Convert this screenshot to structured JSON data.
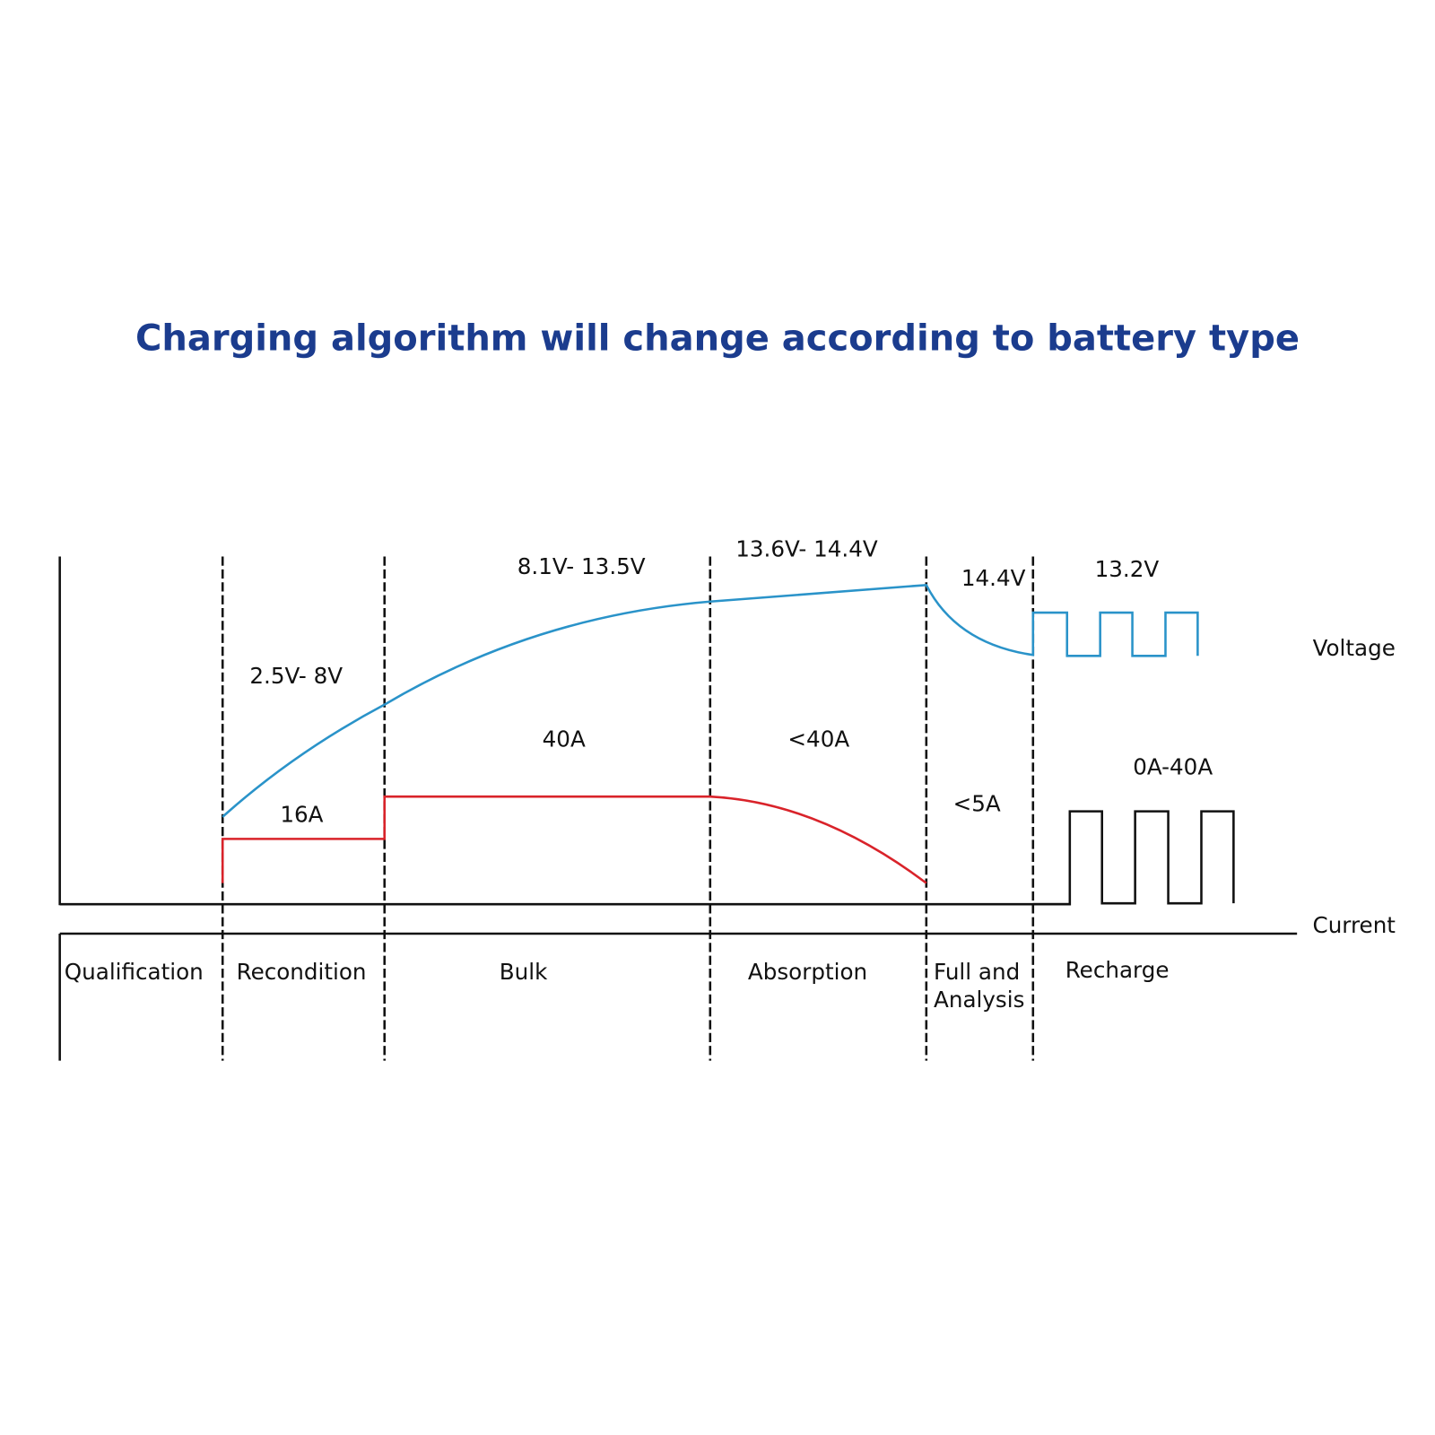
{
  "title": "Charging algorithm will change according to battery type",
  "axis_labels": {
    "voltage": "Voltage",
    "current": "Current"
  },
  "stages": [
    {
      "name": [
        "Qualification"
      ]
    },
    {
      "name": [
        "Recondition"
      ],
      "voltage": "2.5V- 8V",
      "current": "16A"
    },
    {
      "name": [
        "Bulk"
      ],
      "voltage": "8.1V- 13.5V",
      "current": "40A"
    },
    {
      "name": [
        "Absorption"
      ],
      "voltage": "13.6V- 14.4V",
      "current": "<40A"
    },
    {
      "name": [
        "Full and",
        "Analysis"
      ],
      "voltage": "14.4V",
      "current": "<5A"
    },
    {
      "name": [
        "Recharge"
      ],
      "voltage": "13.2V",
      "current": "0A-40A"
    }
  ]
}
